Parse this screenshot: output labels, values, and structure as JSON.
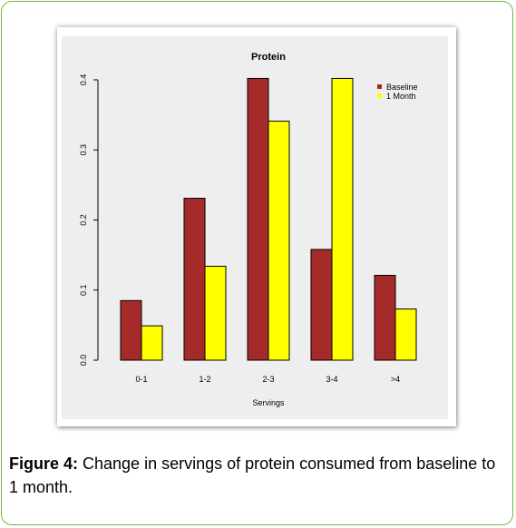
{
  "caption": {
    "label": "Figure 4:",
    "text": " Change in servings of protein consumed from baseline to 1 month."
  },
  "colors": {
    "baseline": "#a52a2a",
    "one_month": "#ffff00",
    "frame_border": "#7cb342",
    "plot_background": "#eeeeee"
  },
  "chart_data": {
    "type": "bar",
    "title": "Protein",
    "xlabel": "Servings",
    "ylabel": "",
    "categories": [
      "0-1",
      "1-2",
      "2-3",
      "3-4",
      ">4"
    ],
    "series": [
      {
        "name": "Baseline",
        "values": [
          0.085,
          0.231,
          0.402,
          0.158,
          0.121
        ]
      },
      {
        "name": "1 Month",
        "values": [
          0.049,
          0.134,
          0.341,
          0.402,
          0.073
        ]
      }
    ],
    "ylim": [
      0,
      0.4
    ],
    "yticks": [
      "0.0",
      "0.1",
      "0.2",
      "0.3",
      "0.4"
    ],
    "grid": false,
    "legend_position": "top-right"
  }
}
